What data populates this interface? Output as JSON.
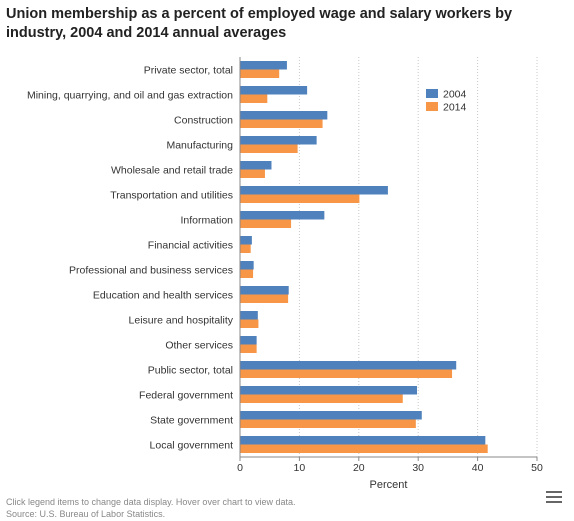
{
  "chart_data": {
    "type": "bar",
    "orientation": "horizontal",
    "title": "Union membership as a percent of employed wage and salary workers by industry, 2004 and 2014 annual averages",
    "categories": [
      "Private sector, total",
      "Mining, quarrying, and oil and gas extraction",
      "Construction",
      "Manufacturing",
      "Wholesale and retail trade",
      "Transportation and utilities",
      "Information",
      "Financial activities",
      "Professional and business services",
      "Education and health services",
      "Leisure and hospitality",
      "Other services",
      "Public sector, total",
      "Federal government",
      "State government",
      "Local government"
    ],
    "series": [
      {
        "name": "2004",
        "color": "#4f81bd",
        "values": [
          7.9,
          11.3,
          14.7,
          12.9,
          5.3,
          24.9,
          14.2,
          2.0,
          2.3,
          8.2,
          3.0,
          2.8,
          36.4,
          29.8,
          30.6,
          41.3
        ]
      },
      {
        "name": "2014",
        "color": "#f79646",
        "values": [
          6.6,
          4.6,
          13.9,
          9.7,
          4.2,
          20.1,
          8.6,
          1.8,
          2.2,
          8.1,
          3.1,
          2.8,
          35.7,
          27.4,
          29.6,
          41.7
        ]
      }
    ],
    "xlabel": "Percent",
    "ylabel": "",
    "xlim": [
      0,
      50
    ],
    "xticks": [
      0,
      10,
      20,
      30,
      40,
      50
    ],
    "grid": true,
    "legend_position": "top-right"
  },
  "footer": {
    "note": "Click legend items to change data display. Hover over chart to view data.",
    "source": "Source: U.S. Bureau of Labor Statistics."
  },
  "menu_icon": "hamburger-menu-icon"
}
